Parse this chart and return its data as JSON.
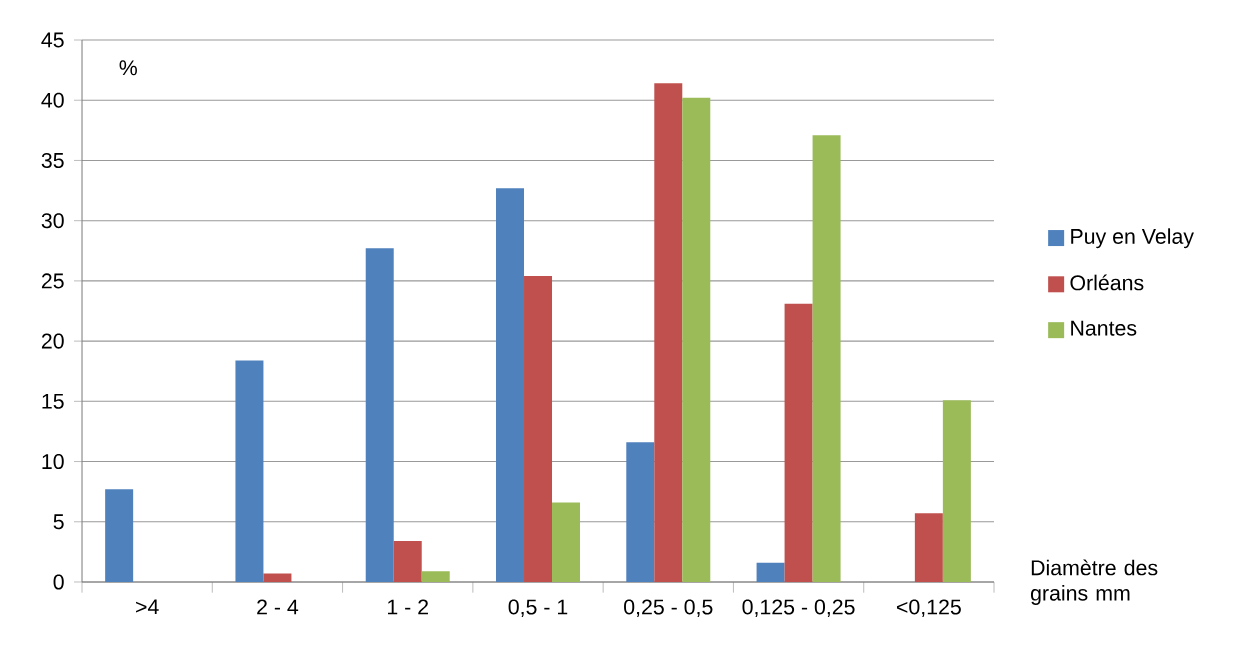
{
  "chart_data": {
    "type": "bar",
    "ylabel": "%",
    "xlabel": "Diamètre des grains mm",
    "categories": [
      ">4",
      "2 - 4",
      "1 - 2",
      "0,5 - 1",
      "0,25 - 0,5",
      "0,125 - 0,25",
      "<0,125"
    ],
    "series": [
      {
        "name": "Puy en Velay",
        "color": "#4f81bd",
        "values": [
          7.7,
          18.4,
          27.7,
          32.7,
          11.6,
          1.6,
          null
        ]
      },
      {
        "name": "Orléans",
        "color": "#c0504d",
        "values": [
          null,
          0.7,
          3.4,
          25.4,
          41.4,
          23.1,
          5.7
        ]
      },
      {
        "name": "Nantes",
        "color": "#9bbb59",
        "values": [
          null,
          null,
          0.9,
          6.6,
          40.2,
          37.1,
          15.1
        ]
      }
    ],
    "ylim": [
      0,
      45
    ],
    "yticks": [
      0,
      5,
      10,
      15,
      20,
      25,
      30,
      35,
      40,
      45
    ],
    "grid": "y",
    "legend": "right"
  }
}
